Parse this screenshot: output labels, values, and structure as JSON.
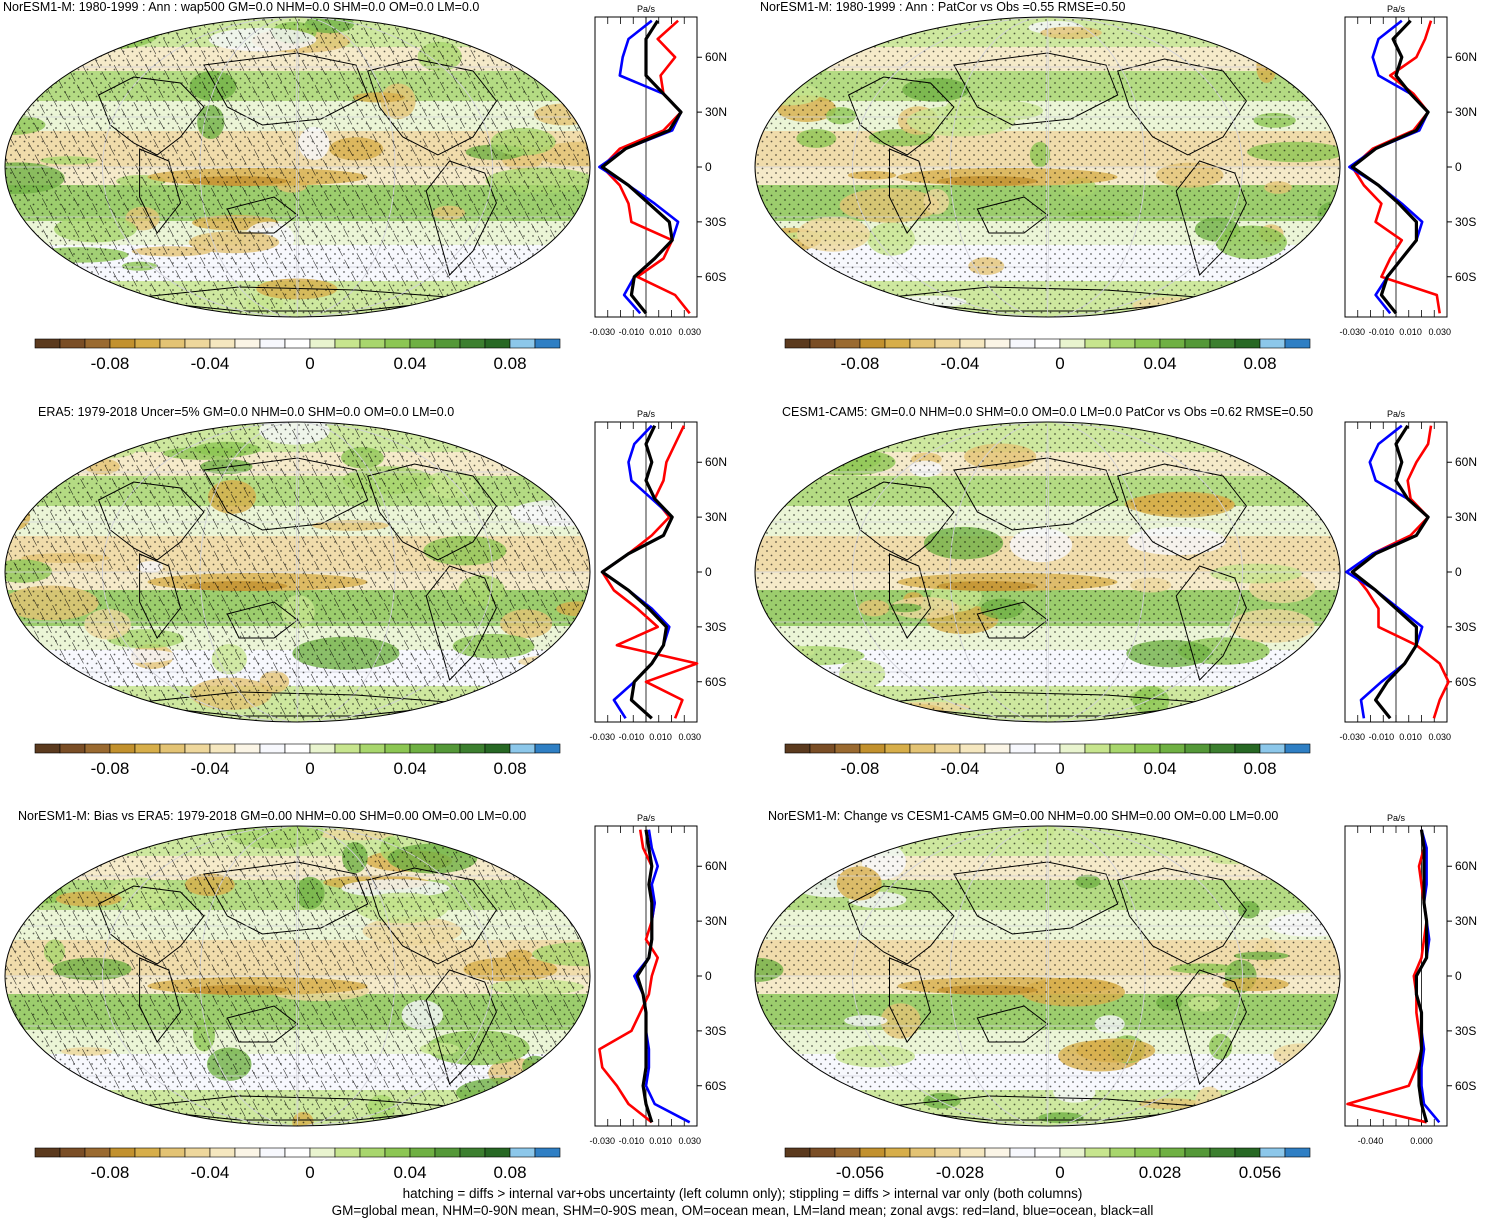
{
  "footer": {
    "line1": "hatching = diffs > internal var+obs uncertainty (left column only); stippling = diffs > internal var only (both columns)",
    "line2": "GM=global mean, NHM=0-90N mean, SHM=0-90S mean, OM=ocean mean, LM=land mean; zonal avgs: red=land, blue=ocean, black=all"
  },
  "colors": {
    "palette": [
      "#5b3a1e",
      "#7a4e26",
      "#9a6a30",
      "#c2912e",
      "#d7ae4a",
      "#e3c374",
      "#eed79c",
      "#f5e7bf",
      "#fbf5e6",
      "#f7f8fd",
      "#ffffff",
      "#e9f4cf",
      "#c7e58e",
      "#a8d66d",
      "#8cc653",
      "#6fb043",
      "#549838",
      "#3c7f2f",
      "#276824",
      "#8cc7ea",
      "#2f7fc4"
    ],
    "land_line": "#ff0000",
    "ocean_line": "#0000ff",
    "all_line": "#000000"
  },
  "chart_data": [
    {
      "type": "map",
      "title": "NorESM1-M: 1980-1999 : Ann : wap500 GM=0.0 NHM=0.0 SHM=0.0 OM=0.0 LM=0.0",
      "colorbar_labels": [
        "-0.08",
        "-0.04",
        "0",
        "0.04",
        "0.08"
      ],
      "hatched": true,
      "zonal": {
        "unit": "Pa/s",
        "ylabels": [
          "60N",
          "30N",
          "0",
          "30S",
          "60S"
        ],
        "xlabels": [
          "-0.030",
          "-0.010",
          "0.010",
          "0.030"
        ],
        "xlim": [
          -0.035,
          0.035
        ],
        "lat": [
          -80,
          -70,
          -60,
          -50,
          -40,
          -30,
          -20,
          -10,
          0,
          10,
          20,
          30,
          40,
          50,
          60,
          70,
          80
        ],
        "land": [
          0.03,
          0.02,
          -0.006,
          0.012,
          0.018,
          -0.01,
          -0.012,
          -0.018,
          -0.03,
          -0.018,
          0.012,
          0.024,
          0.012,
          0.01,
          0.02,
          0.008,
          0.022
        ],
        "ocean": [
          -0.004,
          -0.015,
          -0.008,
          0.006,
          0.018,
          0.022,
          0.006,
          -0.012,
          -0.032,
          -0.014,
          0.018,
          0.024,
          0.012,
          -0.018,
          -0.016,
          -0.012,
          0.004
        ],
        "all": [
          0.0,
          -0.01,
          -0.008,
          0.006,
          0.018,
          0.016,
          0.002,
          -0.012,
          -0.03,
          -0.014,
          0.016,
          0.024,
          0.012,
          0.0,
          0.0,
          0.0,
          0.008
        ]
      }
    },
    {
      "type": "map",
      "title": "NorESM1-M: 1980-1999 : Ann : PatCor vs Obs =0.55 RMSE=0.50",
      "colorbar_labels": [
        "-0.08",
        "-0.04",
        "0",
        "0.04",
        "0.08"
      ],
      "hatched": false,
      "zonal": {
        "unit": "Pa/s",
        "ylabels": [
          "60N",
          "30N",
          "0",
          "30S",
          "60S"
        ],
        "xlabels": [
          "-0.030",
          "-0.010",
          "0.010",
          "0.030"
        ],
        "xlim": [
          -0.035,
          0.035
        ],
        "lat": [
          -80,
          -70,
          -60,
          -50,
          -40,
          -30,
          -20,
          -10,
          0,
          10,
          20,
          30,
          40,
          50,
          60,
          70,
          80
        ],
        "land": [
          0.03,
          0.028,
          -0.01,
          -0.004,
          0.004,
          -0.014,
          -0.01,
          -0.022,
          -0.03,
          -0.016,
          0.012,
          0.022,
          0.012,
          -0.004,
          0.014,
          0.02,
          0.024
        ],
        "ocean": [
          -0.004,
          -0.014,
          -0.006,
          0.004,
          0.014,
          0.018,
          0.004,
          -0.012,
          -0.032,
          -0.014,
          0.016,
          0.022,
          0.01,
          -0.012,
          -0.016,
          -0.012,
          0.004
        ],
        "all": [
          0.0,
          -0.01,
          -0.006,
          0.004,
          0.014,
          0.014,
          0.002,
          -0.012,
          -0.03,
          -0.014,
          0.014,
          0.022,
          0.01,
          0.0,
          0.004,
          -0.002,
          0.01
        ]
      }
    },
    {
      "type": "map",
      "title": "ERA5: 1979-2018 Uncer=5% GM=0.0 NHM=0.0 SHM=0.0 OM=0.0 LM=0.0",
      "colorbar_labels": [
        "-0.08",
        "-0.04",
        "0",
        "0.04",
        "0.08"
      ],
      "hatched": true,
      "zonal": {
        "unit": "Pa/s",
        "ylabels": [
          "60N",
          "30N",
          "0",
          "30S",
          "60S"
        ],
        "xlabels": [
          "-0.030",
          "-0.010",
          "0.010",
          "0.030"
        ],
        "xlim": [
          -0.035,
          0.035
        ],
        "lat": [
          -80,
          -70,
          -60,
          -50,
          -40,
          -30,
          -20,
          -10,
          0,
          10,
          20,
          30,
          40,
          50,
          60,
          70,
          80
        ],
        "land": [
          0.02,
          0.025,
          0.0,
          0.035,
          -0.02,
          0.008,
          -0.006,
          -0.022,
          -0.03,
          -0.012,
          0.004,
          0.016,
          0.006,
          0.012,
          0.014,
          0.02,
          0.026
        ],
        "ocean": [
          -0.014,
          -0.022,
          -0.008,
          0.004,
          0.012,
          0.016,
          0.004,
          -0.012,
          -0.03,
          -0.012,
          0.012,
          0.018,
          0.004,
          -0.01,
          -0.012,
          -0.008,
          0.004
        ],
        "all": [
          0.004,
          -0.01,
          -0.008,
          0.004,
          0.012,
          0.014,
          0.002,
          -0.012,
          -0.03,
          -0.012,
          0.012,
          0.018,
          0.006,
          0.0,
          0.004,
          0.0,
          0.006
        ]
      }
    },
    {
      "type": "map",
      "title": "CESM1-CAM5: GM=0.0 NHM=0.0 SHM=0.0 OM=0.0 LM=0.0 PatCor vs Obs =0.62 RMSE=0.50",
      "colorbar_labels": [
        "-0.08",
        "-0.04",
        "0",
        "0.04",
        "0.08"
      ],
      "hatched": false,
      "zonal": {
        "unit": "Pa/s",
        "ylabels": [
          "60N",
          "30N",
          "0",
          "30S",
          "60S"
        ],
        "xlabels": [
          "-0.030",
          "-0.010",
          "0.010",
          "0.030"
        ],
        "xlim": [
          -0.035,
          0.035
        ],
        "lat": [
          -80,
          -70,
          -60,
          -50,
          -40,
          -30,
          -20,
          -10,
          0,
          10,
          20,
          30,
          40,
          50,
          60,
          70,
          80
        ],
        "land": [
          0.026,
          0.03,
          0.036,
          0.03,
          0.014,
          -0.012,
          -0.012,
          -0.02,
          -0.03,
          -0.016,
          0.01,
          0.022,
          0.01,
          0.008,
          0.014,
          0.022,
          0.024
        ],
        "ocean": [
          -0.022,
          -0.024,
          -0.01,
          0.006,
          0.014,
          0.018,
          0.002,
          -0.014,
          -0.034,
          -0.016,
          0.014,
          0.022,
          0.008,
          -0.014,
          -0.018,
          -0.012,
          0.004
        ],
        "all": [
          -0.004,
          -0.014,
          -0.006,
          0.006,
          0.014,
          0.014,
          0.0,
          -0.014,
          -0.03,
          -0.014,
          0.014,
          0.022,
          0.008,
          0.0,
          0.004,
          0.0,
          0.008
        ]
      }
    },
    {
      "type": "map",
      "title": "NorESM1-M: Bias vs ERA5: 1979-2018 GM=0.00 NHM=0.00 SHM=0.00 OM=0.00 LM=0.00",
      "colorbar_labels": [
        "-0.08",
        "-0.04",
        "0",
        "0.04",
        "0.08"
      ],
      "hatched": true,
      "zonal": {
        "unit": "Pa/s",
        "ylabels": [
          "60N",
          "30N",
          "0",
          "30S",
          "60S"
        ],
        "xlabels": [
          "-0.030",
          "-0.010",
          "0.010",
          "0.030"
        ],
        "xlim": [
          -0.035,
          0.035
        ],
        "lat": [
          -80,
          -70,
          -60,
          -50,
          -40,
          -30,
          -20,
          -10,
          0,
          10,
          20,
          30,
          40,
          50,
          60,
          70,
          80
        ],
        "land": [
          0.004,
          -0.012,
          -0.02,
          -0.03,
          -0.032,
          -0.01,
          -0.004,
          0.002,
          0.004,
          0.008,
          0.0,
          0.004,
          0.006,
          0.002,
          0.004,
          -0.002,
          -0.004
        ],
        "ocean": [
          0.03,
          0.006,
          0.0,
          0.002,
          0.002,
          0.0,
          0.0,
          -0.002,
          -0.008,
          0.002,
          0.004,
          0.004,
          0.006,
          0.004,
          0.008,
          0.004,
          0.002
        ],
        "all": [
          0.004,
          0.0,
          -0.002,
          0.0,
          0.0,
          0.0,
          0.0,
          -0.002,
          -0.006,
          0.002,
          0.004,
          0.004,
          0.004,
          0.002,
          0.004,
          0.002,
          0.0
        ]
      }
    },
    {
      "type": "map",
      "title": "NorESM1-M: Change vs CESM1-CAM5 GM=0.00 NHM=0.00 SHM=0.00 OM=0.00 LM=0.00",
      "colorbar_labels": [
        "-0.056",
        "-0.028",
        "0",
        "0.028",
        "0.056"
      ],
      "hatched": false,
      "zonal": {
        "unit": "Pa/s",
        "ylabels": [
          "60N",
          "30N",
          "0",
          "30S",
          "60S"
        ],
        "xlabels": [
          "-0.040",
          "0.000"
        ],
        "xlim": [
          -0.06,
          0.02
        ],
        "lat": [
          -80,
          -70,
          -60,
          -50,
          -40,
          -30,
          -20,
          -10,
          0,
          10,
          20,
          30,
          40,
          50,
          60,
          70,
          80
        ],
        "land": [
          0.004,
          -0.058,
          -0.01,
          -0.004,
          0.0,
          -0.002,
          -0.004,
          -0.004,
          -0.006,
          0.0,
          0.002,
          0.004,
          0.002,
          0.0,
          -0.002,
          0.002,
          0.0
        ],
        "ocean": [
          0.014,
          0.002,
          0.0,
          0.0,
          0.002,
          0.0,
          0.0,
          -0.004,
          -0.004,
          0.004,
          0.006,
          0.004,
          0.002,
          0.004,
          0.004,
          0.004,
          0.0
        ],
        "all": [
          0.004,
          0.0,
          -0.002,
          -0.002,
          0.0,
          0.0,
          0.0,
          -0.004,
          -0.004,
          0.004,
          0.004,
          0.004,
          0.002,
          0.002,
          0.002,
          0.002,
          0.0
        ]
      }
    }
  ]
}
